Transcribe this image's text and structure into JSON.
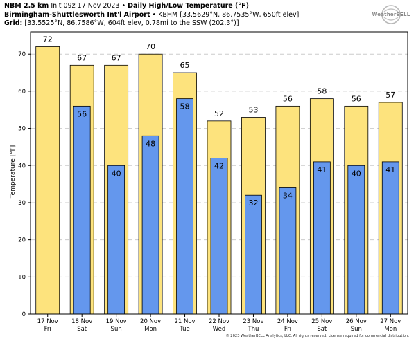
{
  "header": {
    "model": "NBM 2.5 km",
    "init": "Init 09z 17 Nov 2023",
    "sep": "•",
    "product": "Daily High/Low Temperature (°F)",
    "location_name": "Birmingham-Shuttlesworth Int'l Airport",
    "location_detail": "• KBHM [33.5629°N, 86.7535°W, 650ft elev]",
    "grid_label": "Grid:",
    "grid_detail": "[33.5525°N, 86.7586°W, 604ft elev, 0.78mi to the SSW (202.3°)]"
  },
  "logo": {
    "text": "WeatherBELL"
  },
  "copyright": "© 2023 WeatherBELL Analytics, LLC. All rights reserved. License required for commercial distribution.",
  "colors": {
    "high": "#fde37d",
    "low": "#6497ed",
    "grid": "#cccccc"
  },
  "chart_data": {
    "type": "bar",
    "title": "Daily High/Low Temperature (°F)",
    "ylabel": "Temperature [°F]",
    "ylim": [
      0,
      76
    ],
    "yticks": [
      0,
      10,
      20,
      30,
      40,
      50,
      60,
      70
    ],
    "grid": true,
    "categories": [
      {
        "date": "17 Nov",
        "day": "Fri"
      },
      {
        "date": "18 Nov",
        "day": "Sat"
      },
      {
        "date": "19 Nov",
        "day": "Sun"
      },
      {
        "date": "20 Nov",
        "day": "Mon"
      },
      {
        "date": "21 Nov",
        "day": "Tue"
      },
      {
        "date": "22 Nov",
        "day": "Wed"
      },
      {
        "date": "23 Nov",
        "day": "Thu"
      },
      {
        "date": "24 Nov",
        "day": "Fri"
      },
      {
        "date": "25 Nov",
        "day": "Sat"
      },
      {
        "date": "26 Nov",
        "day": "Sun"
      },
      {
        "date": "27 Nov",
        "day": "Mon"
      }
    ],
    "series": [
      {
        "values": [
          72,
          67,
          67,
          70,
          65,
          52,
          53,
          56,
          58,
          56,
          57
        ]
      },
      {
        "values": [
          null,
          56,
          40,
          48,
          58,
          42,
          32,
          34,
          41,
          40,
          41
        ]
      }
    ]
  }
}
